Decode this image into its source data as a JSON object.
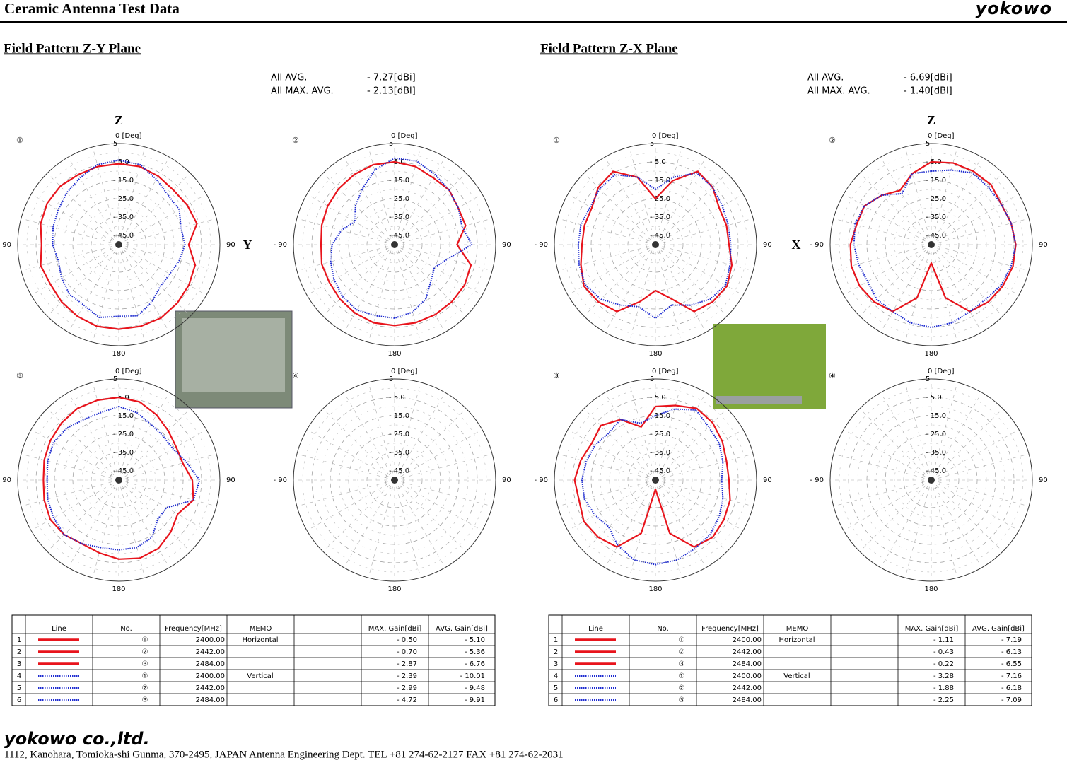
{
  "header": {
    "title": "Ceramic Antenna Test Data",
    "logo": "yokowo"
  },
  "polar": {
    "angles": [
      0,
      15,
      30,
      45,
      60,
      75,
      90,
      105,
      120,
      135,
      150,
      165,
      180,
      195,
      210,
      225,
      240,
      255,
      270,
      285,
      300,
      315,
      330,
      345
    ],
    "rlim": [
      -50,
      5
    ],
    "rticks": [
      5,
      {
        "value": -5,
        "label": "- 5.0"
      },
      {
        "value": -15,
        "label": "- 15.0"
      },
      {
        "value": -25,
        "label": "- 25.0"
      },
      {
        "value": -35,
        "label": "- 35.0"
      },
      {
        "value": -45,
        "label": "- 45.0"
      }
    ],
    "angle_labels": {
      "top": "0 [Deg]",
      "right": "90",
      "bottom": "180",
      "left": "- 90"
    },
    "styles": {
      "solid": {
        "color": "#e8141c"
      },
      "dotted": {
        "color": "#1d2bd0"
      }
    }
  },
  "panels": [
    {
      "heading": "Field Pattern  Z-Y Plane",
      "stats": [
        {
          "label": "All AVG.",
          "value": "- 7.27[dBi]"
        },
        {
          "label": "All MAX. AVG.",
          "value": "- 2.13[dBi]"
        }
      ],
      "axis_top": "Z",
      "axis_side": "Y",
      "plots": [
        {
          "marker": "①",
          "curves": [
            {
              "style": "solid",
              "values": [
                -6,
                -6,
                -7,
                -8,
                -7,
                -6,
                -12,
                -7,
                -6,
                -5,
                -4,
                -4,
                -4,
                -4,
                -5,
                -6,
                -7,
                -6,
                -8,
                -6,
                -5,
                -5,
                -6,
                -6
              ]
            },
            {
              "style": "dotted",
              "values": [
                -4,
                -5,
                -9,
                -12,
                -12,
                -15,
                -14,
                -16,
                -18,
                -18,
                -14,
                -10,
                -11,
                -9,
                -12,
                -12,
                -14,
                -16,
                -14,
                -13,
                -12,
                -10,
                -8,
                -5
              ]
            }
          ]
        },
        {
          "marker": "②",
          "curves": [
            {
              "style": "solid",
              "values": [
                -5,
                -6,
                -8,
                -8,
                -10,
                -10,
                -16,
                -7,
                -6,
                -6,
                -6,
                -6,
                -6,
                -6,
                -7,
                -8,
                -9,
                -9,
                -10,
                -9,
                -8,
                -7,
                -6,
                -5
              ]
            },
            {
              "style": "dotted",
              "values": [
                -3,
                -3,
                -6,
                -8,
                -10,
                -12,
                -8,
                -20,
                -25,
                -22,
                -16,
                -12,
                -10,
                -10,
                -9,
                -10,
                -12,
                -14,
                -16,
                -20,
                -25,
                -20,
                -15,
                -8
              ]
            }
          ]
        },
        {
          "marker": "③",
          "curves": [
            {
              "style": "solid",
              "values": [
                -5,
                -6,
                -9,
                -12,
                -14,
                -14,
                -10,
                -8,
                -13,
                -10,
                -7,
                -6,
                -7,
                -9,
                -10,
                -8,
                -7,
                -8,
                -9,
                -8,
                -7,
                -6,
                -5,
                -5
              ]
            },
            {
              "style": "dotted",
              "values": [
                -10,
                -12,
                -15,
                -16,
                -16,
                -12,
                -6,
                -8,
                -20,
                -20,
                -14,
                -12,
                -12,
                -12,
                -10,
                -8,
                -9,
                -10,
                -11,
                -10,
                -9,
                -10,
                -12,
                -12
              ]
            }
          ]
        },
        {
          "marker": "④",
          "curves": []
        }
      ],
      "table": {
        "headers": [
          "Line",
          "No.",
          "Frequency[MHz]",
          "MEMO",
          "MAX. Gain[dBi]",
          "AVG. Gain[dBi]"
        ],
        "rows": [
          {
            "index": "1",
            "style": "solid",
            "no": "①",
            "freq": "2400.00",
            "memo": "Horizontal",
            "max": "- 0.50",
            "avg": "- 5.10"
          },
          {
            "index": "2",
            "style": "solid",
            "no": "②",
            "freq": "2442.00",
            "max": "- 0.70",
            "avg": "- 5.36"
          },
          {
            "index": "3",
            "style": "solid",
            "no": "③",
            "freq": "2484.00",
            "max": "- 2.87",
            "avg": "- 6.76"
          },
          {
            "index": "4",
            "style": "dotted",
            "no": "①",
            "freq": "2400.00",
            "memo": "Vertical",
            "max": "- 2.39",
            "avg": "- 10.01"
          },
          {
            "index": "5",
            "style": "dotted",
            "no": "②",
            "freq": "2442.00",
            "max": "- 2.99",
            "avg": "- 9.48"
          },
          {
            "index": "6",
            "style": "dotted",
            "no": "③",
            "freq": "2484.00",
            "max": "- 4.72",
            "avg": "- 9.91"
          }
        ]
      }
    },
    {
      "heading": "Field Pattern  Z-X Plane",
      "stats": [
        {
          "label": "All AVG.",
          "value": "- 6.69[dBi]"
        },
        {
          "label": "All MAX. AVG.",
          "value": "- 1.40[dBi]"
        }
      ],
      "axis_top": "Z",
      "axis_side": "X",
      "plots": [
        {
          "marker": "①",
          "curves": [
            {
              "style": "solid",
              "values": [
                -25,
                -14,
                -4,
                -6,
                -10,
                -10,
                -10,
                -7,
                -5,
                -6,
                -8,
                -20,
                -25,
                -18,
                -8,
                -6,
                -5,
                -8,
                -10,
                -10,
                -10,
                -6,
                -4,
                -12
              ]
            },
            {
              "style": "dotted",
              "values": [
                -20,
                -12,
                -5,
                -6,
                -8,
                -9,
                -9,
                -8,
                -6,
                -8,
                -12,
                -16,
                -10,
                -15,
                -12,
                -8,
                -6,
                -7,
                -8,
                -8,
                -9,
                -7,
                -6,
                -12
              ]
            }
          ]
        },
        {
          "marker": "②",
          "curves": [
            {
              "style": "solid",
              "values": [
                -5,
                -4,
                -4,
                -4,
                -6,
                -5,
                -4,
                -4,
                -5,
                -6,
                -8,
                -20,
                -40,
                -20,
                -8,
                -6,
                -5,
                -5,
                -6,
                -8,
                -8,
                -12,
                -16,
                -10
              ]
            },
            {
              "style": "dotted",
              "values": [
                -10,
                -8,
                -5,
                -6,
                -6,
                -5,
                -4,
                -5,
                -6,
                -8,
                -8,
                -6,
                -5,
                -6,
                -8,
                -8,
                -10,
                -9,
                -8,
                -7,
                -8,
                -12,
                -18,
                -10
              ]
            }
          ]
        },
        {
          "marker": "③",
          "curves": [
            {
              "style": "solid",
              "values": [
                -10,
                -8,
                -5,
                -6,
                -8,
                -10,
                -10,
                -8,
                -7,
                -6,
                -8,
                -20,
                -45,
                -20,
                -8,
                -6,
                -5,
                -7,
                -6,
                -8,
                -10,
                -8,
                -12,
                -20
              ]
            },
            {
              "style": "dotted",
              "values": [
                -15,
                -10,
                -6,
                -9,
                -10,
                -12,
                -14,
                -12,
                -10,
                -8,
                -7,
                -5,
                -4,
                -5,
                -9,
                -14,
                -12,
                -10,
                -10,
                -11,
                -12,
                -14,
                -12,
                -18
              ]
            }
          ]
        },
        {
          "marker": "④",
          "curves": []
        }
      ],
      "table": {
        "headers": [
          "Line",
          "No.",
          "Frequency[MHz]",
          "MEMO",
          "MAX. Gain[dBi]",
          "AVG. Gain[dBi]"
        ],
        "rows": [
          {
            "index": "1",
            "style": "solid",
            "no": "①",
            "freq": "2400.00",
            "memo": "Horizontal",
            "max": "- 1.11",
            "avg": "- 7.19"
          },
          {
            "index": "2",
            "style": "solid",
            "no": "②",
            "freq": "2442.00",
            "max": "- 0.43",
            "avg": "- 6.13"
          },
          {
            "index": "3",
            "style": "solid",
            "no": "③",
            "freq": "2484.00",
            "max": "- 0.22",
            "avg": "- 6.55"
          },
          {
            "index": "4",
            "style": "dotted",
            "no": "①",
            "freq": "2400.00",
            "memo": "Vertical",
            "max": "- 3.28",
            "avg": "- 7.16"
          },
          {
            "index": "5",
            "style": "dotted",
            "no": "②",
            "freq": "2442.00",
            "max": "- 1.88",
            "avg": "- 6.18"
          },
          {
            "index": "6",
            "style": "dotted",
            "no": "③",
            "freq": "2484.00",
            "max": "- 2.25",
            "avg": "- 7.09"
          }
        ]
      }
    }
  ],
  "footer": {
    "logo": "yokowo co.,ltd.",
    "address": "1112, Kanohara, Tomioka-shi Gunma, 370-2495, JAPAN  Antenna Engineering Dept. TEL +81 274-62-2127 FAX +81 274-62-2031"
  }
}
